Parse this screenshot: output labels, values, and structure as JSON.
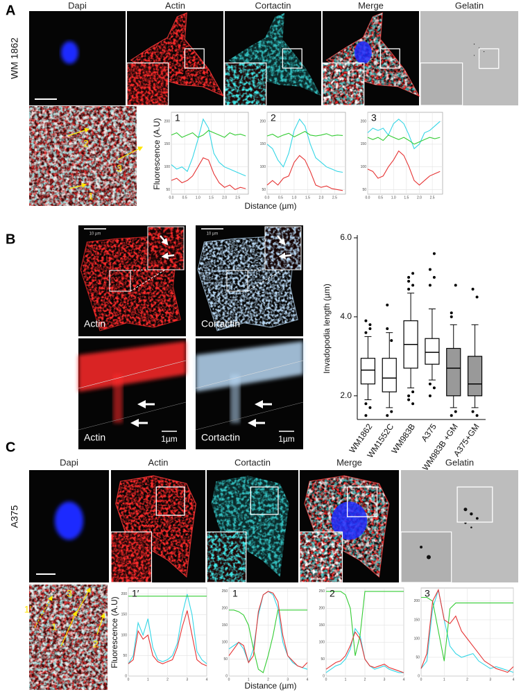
{
  "panel_a": {
    "label": "A",
    "cell_line": "WM 1862",
    "channels": [
      "Dapi",
      "Actin",
      "Cortactin",
      "Merge",
      "Gelatin"
    ],
    "zoom_labels": [
      "2",
      "3",
      "1"
    ],
    "y_label": "Fluorescence (A.U)",
    "x_label": "Distance (µm)",
    "x": [
      0,
      0.2,
      0.4,
      0.6,
      0.8,
      1.0,
      1.2,
      1.4,
      1.6,
      1.8,
      2.0,
      2.2,
      2.4,
      2.6,
      2.8
    ],
    "xlim": [
      0,
      2.9
    ],
    "xticks": [
      {
        "value": 0,
        "label": "0.0"
      },
      0.5,
      {
        "value": 1,
        "label": "1.0"
      },
      1.5,
      {
        "value": 2,
        "label": "2.0"
      },
      2.5
    ],
    "profiles": [
      {
        "label": "1",
        "ylim": [
          40,
          220
        ],
        "yticks": [
          50,
          100,
          150,
          200
        ],
        "series": [
          {
            "color": "#33d6e6",
            "values": [
              105,
              95,
              100,
              90,
              120,
              160,
              205,
              185,
              130,
              110,
              100,
              95,
              90,
              85,
              80
            ]
          },
          {
            "color": "#33cc33",
            "values": [
              170,
              175,
              165,
              170,
              175,
              165,
              170,
              180,
              175,
              170,
              165,
              175,
              170,
              172,
              168
            ]
          },
          {
            "color": "#e63333",
            "values": [
              70,
              75,
              65,
              70,
              80,
              100,
              120,
              115,
              85,
              65,
              55,
              60,
              50,
              55,
              52
            ]
          }
        ]
      },
      {
        "label": "2",
        "ylim": [
          40,
          220
        ],
        "yticks": [
          50,
          100,
          150,
          200
        ],
        "series": [
          {
            "color": "#33d6e6",
            "values": [
              150,
              140,
              115,
              100,
              130,
              180,
              205,
              190,
              150,
              120,
              110,
              100,
              95,
              90,
              88
            ]
          },
          {
            "color": "#33cc33",
            "values": [
              168,
              172,
              165,
              170,
              174,
              166,
              172,
              178,
              170,
              168,
              170,
              173,
              168,
              170,
              169
            ]
          },
          {
            "color": "#e63333",
            "values": [
              60,
              70,
              60,
              75,
              80,
              110,
              125,
              115,
              90,
              60,
              55,
              58,
              52,
              50,
              48
            ]
          }
        ]
      },
      {
        "label": "3",
        "ylim": [
          40,
          220
        ],
        "yticks": [
          50,
          100,
          150,
          200
        ],
        "series": [
          {
            "color": "#33d6e6",
            "values": [
              175,
              185,
              180,
              185,
              170,
              195,
              205,
              195,
              170,
              140,
              150,
              175,
              180,
              190,
              200
            ]
          },
          {
            "color": "#33cc33",
            "values": [
              165,
              160,
              165,
              158,
              170,
              165,
              160,
              165,
              158,
              150,
              155,
              160,
              165,
              162,
              165
            ]
          },
          {
            "color": "#e63333",
            "values": [
              95,
              90,
              75,
              80,
              100,
              115,
              135,
              125,
              100,
              70,
              60,
              70,
              80,
              85,
              90
            ]
          }
        ]
      }
    ]
  },
  "panel_b": {
    "label": "B",
    "top_labels": [
      "Actin",
      "Cortactin"
    ],
    "scale_top": [
      "10 µm",
      "10 µm"
    ],
    "bottom_labels": [
      "Actin",
      "Cortactin"
    ],
    "scale_bottom": [
      "1µm",
      "1µm"
    ]
  },
  "chart_data": {
    "type": "box",
    "y_label": "Invadopodia length (µm)",
    "categories": [
      "WM1862",
      "WM1552C",
      "WM983B",
      "A375",
      "WM983B +GM",
      "A375+GM"
    ],
    "ylim": [
      1.4,
      6.0
    ],
    "yticks": [
      {
        "value": 2,
        "label": "2.0"
      },
      {
        "value": 4,
        "label": "4.0"
      },
      {
        "value": 6,
        "label": "6.0"
      }
    ],
    "boxes": [
      {
        "color": "#ffffff",
        "whisker_low": 1.9,
        "q1": 2.3,
        "median": 2.65,
        "q3": 2.95,
        "whisker_high": 3.5,
        "outliers": [
          3.6,
          3.7,
          3.9,
          3.8,
          1.8,
          1.7,
          1.5
        ]
      },
      {
        "color": "#ffffff",
        "whisker_low": 1.7,
        "q1": 2.1,
        "median": 2.45,
        "q3": 2.95,
        "whisker_high": 3.6,
        "outliers": [
          3.7,
          3.4,
          4.3,
          1.6,
          1.5
        ]
      },
      {
        "color": "#ffffff",
        "whisker_low": 2.2,
        "q1": 2.7,
        "median": 3.3,
        "q3": 3.9,
        "whisker_high": 4.6,
        "outliers": [
          4.9,
          5.1,
          5.0,
          4.8,
          4.7,
          2.1,
          2.0,
          1.8,
          1.9
        ]
      },
      {
        "color": "#ffffff",
        "whisker_low": 2.4,
        "q1": 2.8,
        "median": 3.1,
        "q3": 3.45,
        "whisker_high": 4.2,
        "outliers": [
          4.8,
          5.6,
          5.2,
          5.0,
          2.3,
          2.2,
          2.0
        ]
      },
      {
        "color": "#999999",
        "whisker_low": 1.7,
        "q1": 2.0,
        "median": 2.7,
        "q3": 3.2,
        "whisker_high": 3.8,
        "outliers": [
          4.1,
          4.8,
          4.0,
          1.6,
          1.5
        ]
      },
      {
        "color": "#999999",
        "whisker_low": 1.7,
        "q1": 2.0,
        "median": 2.3,
        "q3": 3.0,
        "whisker_high": 3.8,
        "outliers": [
          4.7,
          4.5,
          1.6,
          1.5
        ]
      }
    ]
  },
  "panel_c": {
    "label": "C",
    "cell_line": "A375",
    "channels": [
      "Dapi",
      "Actin",
      "Cortactin",
      "Merge",
      "Gelatin"
    ],
    "zoom_labels": [
      "1′",
      "3",
      "1",
      "2"
    ],
    "y_label": "Fluorescence (A.U)",
    "x_label": "Distance (µm)",
    "x": [
      0,
      0.25,
      0.5,
      0.75,
      1,
      1.25,
      1.5,
      1.75,
      2,
      2.25,
      2.5,
      2.75,
      3,
      3.25,
      3.5,
      3.75,
      4
    ],
    "xlim": [
      0,
      4
    ],
    "xticks": [
      0,
      1,
      2,
      3,
      4
    ],
    "profiles": [
      {
        "label": "1′",
        "ylim": [
          0,
          215
        ],
        "yticks": [
          0,
          50,
          100,
          150,
          200
        ],
        "series": [
          {
            "color": "#33d6e6",
            "values": [
              30,
              50,
              130,
              100,
              140,
              70,
              40,
              35,
              40,
              50,
              80,
              150,
              200,
              150,
              60,
              40,
              30
            ]
          },
          {
            "color": "#33cc33",
            "values": [
              195,
              195,
              195,
              195,
              195,
              195,
              195,
              195,
              195,
              195,
              195,
              195,
              195,
              195,
              195,
              195,
              195
            ]
          },
          {
            "color": "#e63333",
            "values": [
              30,
              40,
              110,
              90,
              100,
              50,
              35,
              30,
              35,
              40,
              70,
              120,
              160,
              100,
              40,
              30,
              25
            ]
          }
        ]
      },
      {
        "label": "1",
        "ylim": [
          0,
          260
        ],
        "yticks": [
          0,
          50,
          100,
          150,
          200,
          250
        ],
        "series": [
          {
            "color": "#33d6e6",
            "values": [
              80,
              90,
              100,
              80,
              40,
              80,
              180,
              240,
              250,
              240,
              200,
              100,
              60,
              40,
              30,
              25,
              20
            ]
          },
          {
            "color": "#33cc33",
            "values": [
              195,
              195,
              190,
              180,
              150,
              80,
              20,
              10,
              60,
              120,
              195,
              195,
              195,
              195,
              195,
              195,
              195
            ]
          },
          {
            "color": "#e63333",
            "values": [
              60,
              80,
              100,
              90,
              40,
              60,
              190,
              240,
              250,
              245,
              220,
              120,
              60,
              45,
              30,
              25,
              40
            ]
          }
        ]
      },
      {
        "label": "2",
        "ylim": [
          0,
          260
        ],
        "yticks": [
          0,
          50,
          100,
          150,
          200,
          250
        ],
        "series": [
          {
            "color": "#33d6e6",
            "values": [
              10,
              20,
              30,
              35,
              50,
              80,
              140,
              120,
              50,
              30,
              20,
              25,
              30,
              20,
              15,
              10,
              10
            ]
          },
          {
            "color": "#33cc33",
            "values": [
              250,
              250,
              250,
              250,
              240,
              200,
              60,
              120,
              250,
              250,
              250,
              250,
              250,
              250,
              250,
              250,
              250
            ]
          },
          {
            "color": "#e63333",
            "values": [
              20,
              30,
              40,
              45,
              60,
              90,
              130,
              110,
              50,
              30,
              25,
              30,
              35,
              25,
              20,
              15,
              10
            ]
          }
        ]
      },
      {
        "label": "3",
        "ylim": [
          0,
          235
        ],
        "yticks": [
          0,
          50,
          100,
          150,
          200
        ],
        "series": [
          {
            "color": "#33d6e6",
            "values": [
              20,
              40,
              180,
              230,
              150,
              80,
              60,
              50,
              55,
              60,
              40,
              30,
              20,
              25,
              20,
              15,
              10
            ]
          },
          {
            "color": "#33cc33",
            "values": [
              210,
              210,
              200,
              120,
              40,
              180,
              195,
              195,
              195,
              195,
              195,
              195,
              195,
              195,
              195,
              195,
              195
            ]
          },
          {
            "color": "#e63333",
            "values": [
              20,
              60,
              200,
              230,
              150,
              140,
              160,
              120,
              100,
              80,
              60,
              40,
              30,
              20,
              15,
              10,
              25
            ]
          }
        ]
      }
    ]
  }
}
